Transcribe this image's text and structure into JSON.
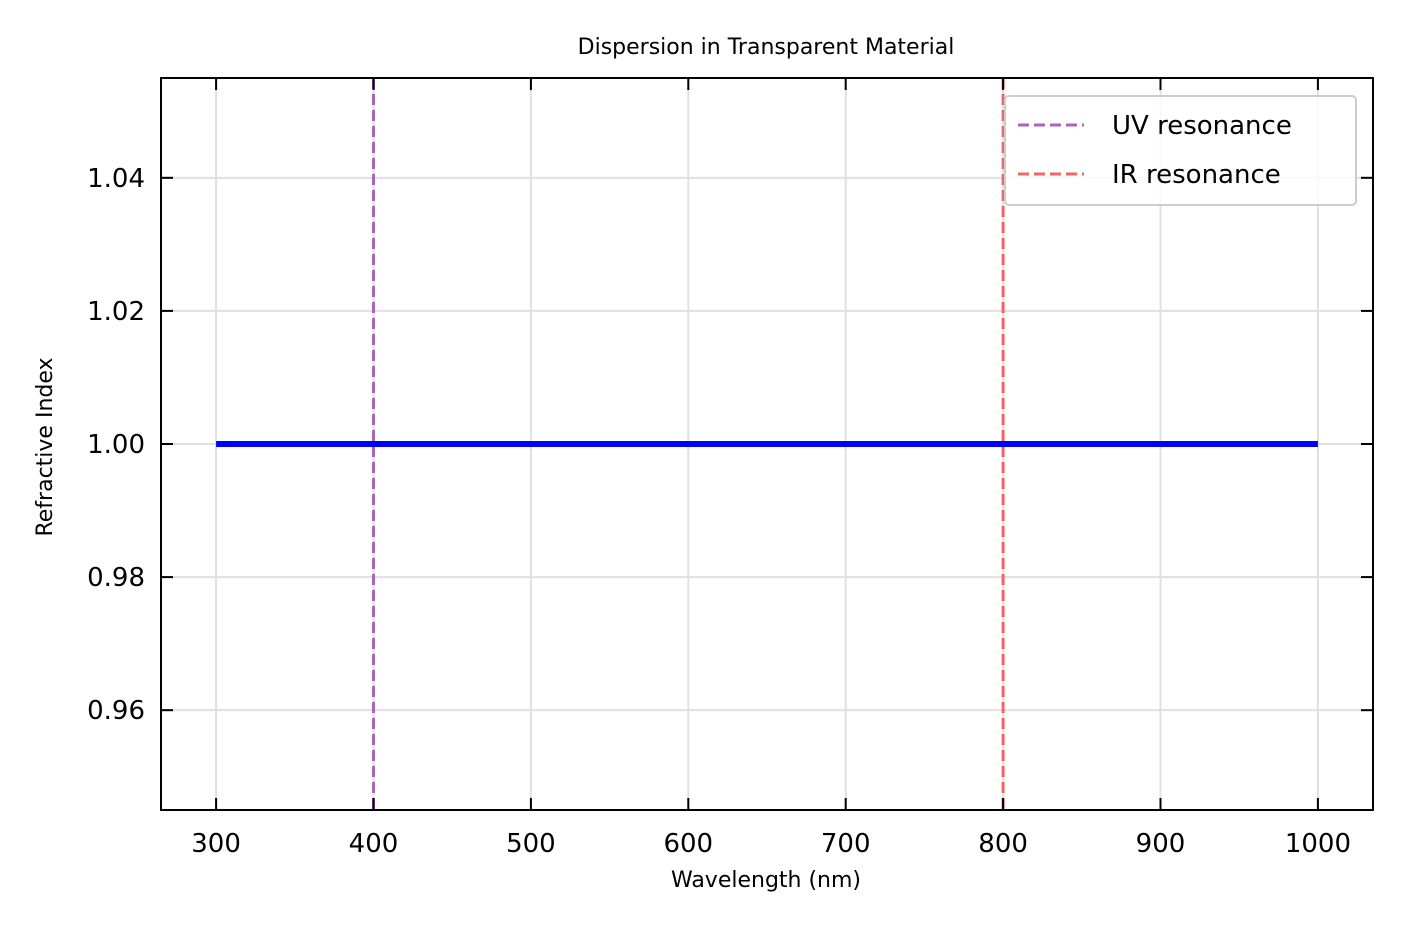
{
  "chart_data": {
    "type": "line",
    "title": "Dispersion in Transparent Material",
    "xlabel": "Wavelength (nm)",
    "ylabel": "Refractive Index",
    "xlim": [
      265,
      1035
    ],
    "ylim": [
      0.945,
      1.055
    ],
    "xticks": [
      300,
      400,
      500,
      600,
      700,
      800,
      900,
      1000
    ],
    "xtick_labels": [
      "300",
      "400",
      "500",
      "600",
      "700",
      "800",
      "900",
      "1000"
    ],
    "yticks": [
      0.96,
      0.98,
      1.0,
      1.02,
      1.04
    ],
    "ytick_labels": [
      "0.96",
      "0.98",
      "1.00",
      "1.02",
      "1.04"
    ],
    "grid": true,
    "series": [
      {
        "color": "#0000ff",
        "x": [
          300,
          1000
        ],
        "y": [
          1.0,
          1.0
        ]
      }
    ],
    "vlines": [
      {
        "name": "UV resonance",
        "x": 400,
        "color": "#aa66bb",
        "style": "dashed"
      },
      {
        "name": "IR resonance",
        "x": 800,
        "color": "#ee6666",
        "style": "dashed"
      }
    ],
    "legend": {
      "position": "top-right",
      "entries": [
        "UV resonance",
        "IR resonance"
      ]
    }
  }
}
